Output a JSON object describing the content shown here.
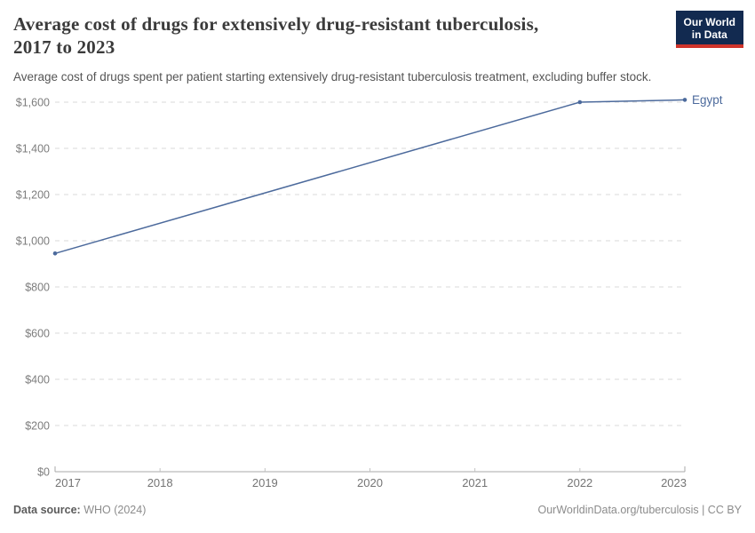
{
  "header": {
    "title_line1": "Average cost of drugs for extensively drug-resistant tuberculosis,",
    "title_line2": "2017 to 2023",
    "subtitle": "Average cost of drugs spent per patient starting extensively drug-resistant tuberculosis treatment, excluding buffer stock.",
    "logo": {
      "line1": "Our World",
      "line2": "in Data",
      "bg_color": "#122a50",
      "accent_color": "#cf342b"
    }
  },
  "chart_data": {
    "type": "line",
    "title": "Average cost of drugs for extensively drug-resistant tuberculosis, 2017 to 2023",
    "xlabel": "",
    "ylabel": "",
    "xlim": [
      2017,
      2023
    ],
    "ylim": [
      0,
      1600
    ],
    "x_ticks": [
      2017,
      2018,
      2019,
      2020,
      2021,
      2022,
      2023
    ],
    "y_ticks": [
      0,
      200,
      400,
      600,
      800,
      1000,
      1200,
      1400,
      1600
    ],
    "y_tick_prefix": "$",
    "grid": "horizontal-dashed",
    "legend": "end-of-line-label",
    "series": [
      {
        "name": "Egypt",
        "color": "#4c6a9c",
        "points": [
          {
            "year": 2017,
            "value": 945
          },
          {
            "year": 2022,
            "value": 1600
          },
          {
            "year": 2023,
            "value": 1610
          }
        ]
      }
    ]
  },
  "footer": {
    "source_label": "Data source:",
    "source_value": " WHO (2024)",
    "link": "OurWorldinData.org/tuberculosis | CC BY"
  }
}
